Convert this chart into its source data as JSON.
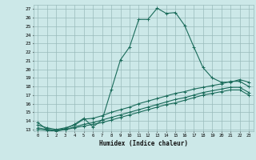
{
  "xlabel": "Humidex (Indice chaleur)",
  "bg_color": "#cce8e8",
  "grid_color": "#99bbbb",
  "line_color": "#1a6b5a",
  "xlim": [
    -0.5,
    23.5
  ],
  "ylim": [
    12.8,
    27.5
  ],
  "xticks": [
    0,
    1,
    2,
    3,
    4,
    5,
    6,
    7,
    8,
    9,
    10,
    11,
    12,
    13,
    14,
    15,
    16,
    17,
    18,
    19,
    20,
    21,
    22,
    23
  ],
  "yticks": [
    13,
    14,
    15,
    16,
    17,
    18,
    19,
    20,
    21,
    22,
    23,
    24,
    25,
    26,
    27
  ],
  "line1_x": [
    0,
    1,
    2,
    3,
    4,
    5,
    6,
    7,
    8,
    9,
    10,
    11,
    12,
    13,
    14,
    15,
    16,
    17,
    18,
    19,
    20,
    21,
    22,
    23
  ],
  "line1_y": [
    13.8,
    13.0,
    12.9,
    13.1,
    13.6,
    14.3,
    13.3,
    14.1,
    17.6,
    21.1,
    22.6,
    25.8,
    25.8,
    27.1,
    26.5,
    26.6,
    25.1,
    22.6,
    20.2,
    19.0,
    18.5,
    18.5,
    18.8,
    18.5
  ],
  "line2_x": [
    0,
    1,
    2,
    3,
    4,
    5,
    6,
    7,
    8,
    9,
    10,
    11,
    12,
    13,
    14,
    15,
    16,
    17,
    18,
    19,
    20,
    21,
    22,
    23
  ],
  "line2_y": [
    13.5,
    13.2,
    13.0,
    13.2,
    13.5,
    14.2,
    14.3,
    14.6,
    15.0,
    15.3,
    15.6,
    16.0,
    16.3,
    16.6,
    16.9,
    17.2,
    17.4,
    17.7,
    17.9,
    18.1,
    18.3,
    18.6,
    18.6,
    18.0
  ],
  "line3_x": [
    0,
    1,
    2,
    3,
    4,
    5,
    6,
    7,
    8,
    9,
    10,
    11,
    12,
    13,
    14,
    15,
    16,
    17,
    18,
    19,
    20,
    21,
    22,
    23
  ],
  "line3_y": [
    13.2,
    13.0,
    12.9,
    13.0,
    13.3,
    13.6,
    13.8,
    14.1,
    14.4,
    14.7,
    15.0,
    15.3,
    15.6,
    15.9,
    16.2,
    16.5,
    16.7,
    17.0,
    17.3,
    17.5,
    17.7,
    17.9,
    17.9,
    17.3
  ],
  "line4_x": [
    0,
    1,
    2,
    3,
    4,
    5,
    6,
    7,
    8,
    9,
    10,
    11,
    12,
    13,
    14,
    15,
    16,
    17,
    18,
    19,
    20,
    21,
    22,
    23
  ],
  "line4_y": [
    13.0,
    12.9,
    12.8,
    13.0,
    13.2,
    13.4,
    13.6,
    13.8,
    14.1,
    14.4,
    14.7,
    15.0,
    15.3,
    15.6,
    15.9,
    16.1,
    16.4,
    16.7,
    17.0,
    17.2,
    17.4,
    17.6,
    17.6,
    17.0
  ]
}
